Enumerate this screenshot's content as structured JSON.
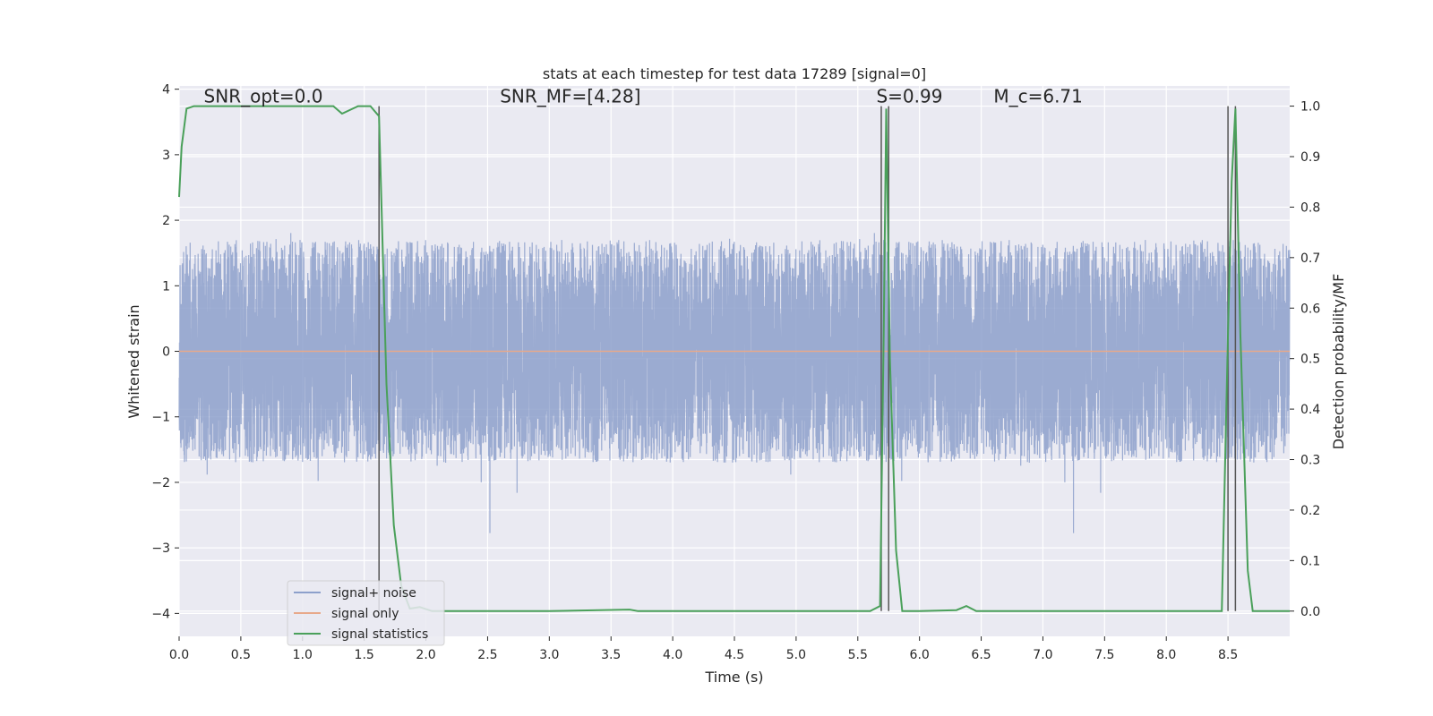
{
  "chart_data": {
    "type": "line",
    "title": "stats at each timestep for test data 17289 [signal=0]",
    "xlabel": "Time (s)",
    "ylabel": "Whitened strain",
    "ylabel_right": "Detection probability/MF",
    "xlim": [
      0.0,
      9.0
    ],
    "ylim": [
      -4.35,
      4.05
    ],
    "ylim_right": [
      -0.05,
      1.04
    ],
    "x_ticks": [
      0.0,
      0.5,
      1.0,
      1.5,
      2.0,
      2.5,
      3.0,
      3.5,
      4.0,
      4.5,
      5.0,
      5.5,
      6.0,
      6.5,
      7.0,
      7.5,
      8.0,
      8.5
    ],
    "x_tick_labels": [
      "0.0",
      "0.5",
      "1.0",
      "1.5",
      "2.0",
      "2.5",
      "3.0",
      "3.5",
      "4.0",
      "4.5",
      "5.0",
      "5.5",
      "6.0",
      "6.5",
      "7.0",
      "7.5",
      "8.0",
      "8.5"
    ],
    "y_ticks": [
      -4,
      -3,
      -2,
      -1,
      0,
      1,
      2,
      3,
      4
    ],
    "y_tick_labels": [
      "−4",
      "−3",
      "−2",
      "−1",
      "0",
      "1",
      "2",
      "3",
      "4"
    ],
    "y_ticks_right": [
      0.0,
      0.1,
      0.2,
      0.3,
      0.4,
      0.5,
      0.6,
      0.7,
      0.8,
      0.9,
      1.0
    ],
    "y_tick_labels_right": [
      "0.0",
      "0.1",
      "0.2",
      "0.3",
      "0.4",
      "0.5",
      "0.6",
      "0.7",
      "0.8",
      "0.9",
      "1.0"
    ],
    "grid": true,
    "legend_placement": "lower-left",
    "annotations": [
      {
        "text": "SNR_opt=0.0",
        "x": 0.2,
        "y": 3.8
      },
      {
        "text": "SNR_MF=[4.28]",
        "x": 2.6,
        "y": 3.8
      },
      {
        "text": "S=0.99",
        "x": 5.65,
        "y": 3.8
      },
      {
        "text": "M_c=6.71",
        "x": 6.6,
        "y": 3.8
      }
    ],
    "vertical_lines_x": [
      1.62,
      5.69,
      5.75,
      8.5,
      8.56
    ],
    "series": [
      {
        "name": "signal+ noise",
        "axis": "left",
        "color": "#8da0cb",
        "kind": "noise",
        "envelope": 1.7,
        "spike_range": [
          -4.0,
          3.7
        ],
        "samples": 9000
      },
      {
        "name": "signal only",
        "axis": "left",
        "color": "#e8a98a",
        "x": [
          0.0,
          9.0
        ],
        "y": [
          0.0,
          0.0
        ]
      },
      {
        "name": "signal statistics",
        "axis": "right",
        "color": "#4aa05a",
        "x": [
          0.0,
          0.02,
          0.06,
          0.12,
          0.5,
          1.0,
          1.25,
          1.32,
          1.45,
          1.55,
          1.62,
          1.68,
          1.74,
          1.8,
          1.87,
          1.95,
          2.05,
          2.2,
          3.0,
          3.65,
          3.72,
          3.8,
          4.0,
          5.6,
          5.68,
          5.71,
          5.73,
          5.76,
          5.81,
          5.86,
          6.0,
          6.3,
          6.38,
          6.46,
          7.0,
          8.0,
          8.45,
          8.5,
          8.53,
          8.56,
          8.6,
          8.66,
          8.7,
          9.0
        ],
        "y": [
          0.82,
          0.92,
          0.995,
          1.0,
          1.0,
          1.0,
          1.0,
          0.985,
          1.0,
          1.0,
          0.98,
          0.45,
          0.17,
          0.05,
          0.005,
          0.008,
          0.0,
          0.0,
          0.0,
          0.003,
          0.0,
          0.0,
          0.0,
          0.0,
          0.01,
          0.55,
          0.995,
          0.5,
          0.12,
          0.0,
          0.0,
          0.002,
          0.01,
          0.0,
          0.0,
          0.0,
          0.0,
          0.55,
          0.85,
          0.995,
          0.55,
          0.08,
          0.0,
          0.0
        ]
      }
    ]
  }
}
